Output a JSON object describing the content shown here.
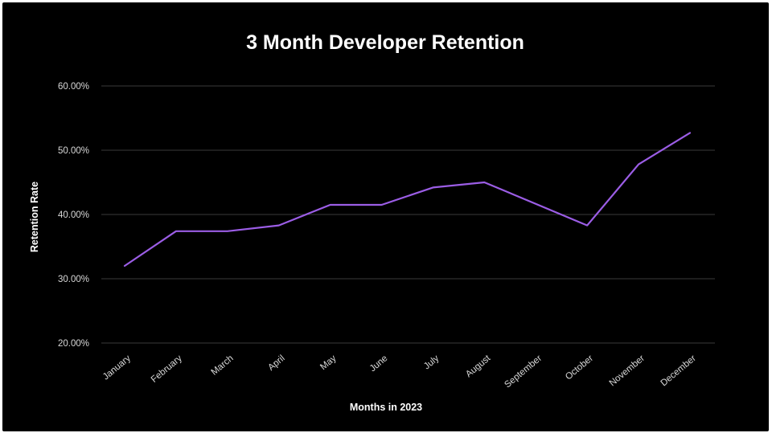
{
  "chart_data": {
    "type": "line",
    "title": "3 Month Developer Retention",
    "xlabel": "Months in 2023",
    "ylabel": "Retention Rate",
    "categories": [
      "January",
      "February",
      "March",
      "April",
      "May",
      "June",
      "July",
      "August",
      "September",
      "October",
      "November",
      "December"
    ],
    "series": [
      {
        "values": [
          32.0,
          37.4,
          37.4,
          38.3,
          41.5,
          41.5,
          44.2,
          45.0,
          null,
          38.3,
          47.8,
          52.7
        ],
        "color": "#9B5DE5"
      }
    ],
    "ylim": [
      20,
      60
    ],
    "yticks": [
      20,
      30,
      40,
      50,
      60
    ],
    "ytick_labels": [
      "20.00%",
      "30.00%",
      "40.00%",
      "50.00%",
      "60.00%"
    ],
    "grid": true,
    "background": "#000000"
  }
}
